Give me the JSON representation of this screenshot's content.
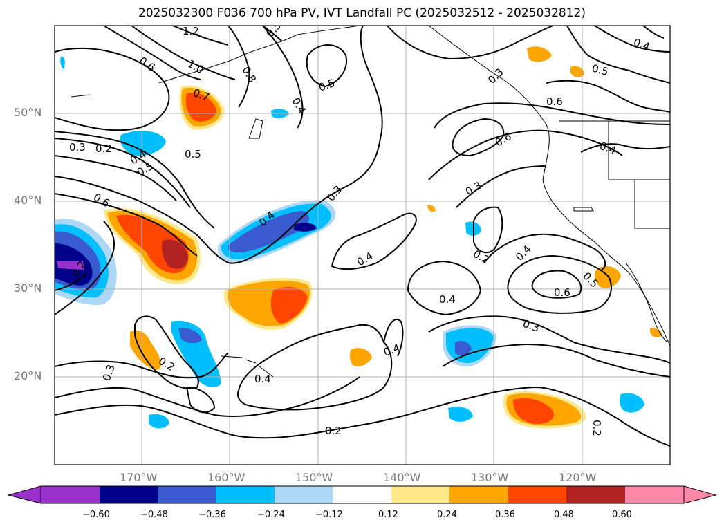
{
  "title": "2025032300 F036 700 hPa PV, IVT Landfall PC (2025032512 - 2025032812)",
  "lat_labels": [
    "50°N",
    "40°N",
    "30°N",
    "20°N"
  ],
  "lon_labels": [
    "170°W",
    "160°W",
    "150°W",
    "140°W",
    "130°W",
    "120°W"
  ],
  "colorbar": {
    "ticks": [
      "−0.60",
      "−0.48",
      "−0.36",
      "−0.24",
      "−0.12",
      "0.12",
      "0.24",
      "0.36",
      "0.48",
      "0.60"
    ],
    "colors": [
      "#9a31cc",
      "#00008b",
      "#3a5bd0",
      "#00bfff",
      "#add8f5",
      "#ffffff",
      "#ffe88a",
      "#ffa500",
      "#ff4500",
      "#b22222",
      "#ff88aa"
    ]
  },
  "contour_labels": [
    "1.2",
    "1.0",
    "0.6",
    "0.8",
    "0.5",
    "0.7",
    "0.5",
    "0.3",
    "0.2",
    "0.4",
    "0.5",
    "0.6",
    "0.4",
    "0.3",
    "0.2",
    "0.3",
    "0.4",
    "0.6",
    "0.4",
    "0.5",
    "0.4",
    "0.5",
    "0.4",
    "0.6",
    "0.3",
    "0.4",
    "0.4",
    "0.2",
    "0.5",
    "0.6",
    "0.3",
    "0.3",
    "0.2",
    "0.4",
    "0.4",
    "0.2",
    "0.2"
  ]
}
